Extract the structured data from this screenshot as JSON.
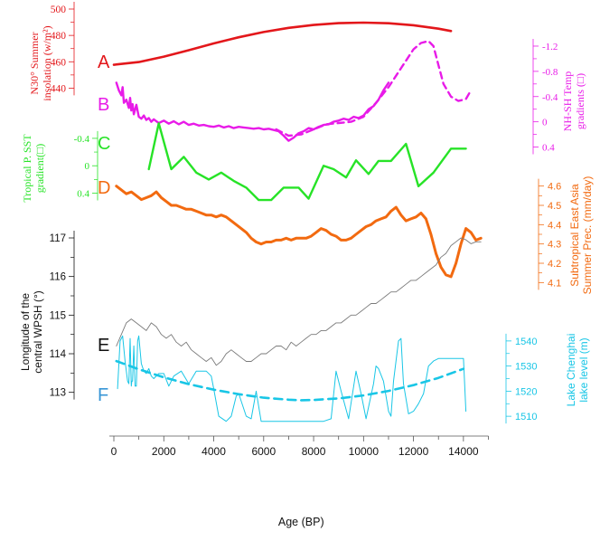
{
  "colors": {
    "A": "#e3171b",
    "B": "#e81be8",
    "C": "#27e327",
    "D": "#f26a10",
    "E": "#111111",
    "E_line": "#7a7a7a",
    "F": "#19c6e6",
    "F_letter": "#3896d6",
    "axis": "#555555"
  },
  "xaxis": {
    "label": "Age (BP)",
    "range": [
      0,
      15000
    ],
    "ticks": [
      0,
      2000,
      4000,
      6000,
      8000,
      10000,
      12000,
      14000
    ]
  },
  "chart_data": [
    {
      "type": "line",
      "letter": "A",
      "ylabel": [
        "N30° Summer",
        "insolation (w/m²)"
      ],
      "ylim": [
        430,
        500
      ],
      "yticks": [
        440,
        460,
        480,
        500
      ],
      "series": [
        {
          "style": "solid",
          "x": [
            0,
            1000,
            2000,
            3000,
            4000,
            5000,
            6000,
            7000,
            8000,
            9000,
            10000,
            11000,
            12000,
            13000,
            13500
          ],
          "y": [
            457.7,
            459.8,
            463.9,
            468.8,
            473.9,
            478.6,
            482.6,
            485.7,
            487.9,
            489.3,
            489.7,
            489.2,
            487.7,
            485.1,
            483.3
          ]
        }
      ]
    },
    {
      "type": "line",
      "letter": "B",
      "ylabel": [
        "NH-SH Temp",
        "gradients (□)"
      ],
      "ylim": [
        -1.3,
        0.55
      ],
      "yticks": [
        -1.2,
        -0.8,
        -0.4,
        0,
        0.4
      ],
      "ytick_labels": [
        "-1.2",
        "-0.8",
        "-0.4",
        "0",
        "0.4"
      ],
      "series": [
        {
          "style": "solid",
          "x": [
            100,
            200,
            300,
            350,
            400,
            500,
            600,
            650,
            700,
            750,
            800,
            900,
            1000,
            1100,
            1200,
            1300,
            1400,
            1500,
            1600,
            1800,
            2000,
            2200,
            2400,
            2600,
            2800,
            3000,
            3200,
            3400,
            3600,
            3800,
            4000,
            4200,
            4400,
            4600,
            4800,
            5000,
            5200,
            5400,
            5600,
            5800,
            6000,
            6200,
            6400,
            6600,
            6800,
            7000,
            7200,
            7400,
            7600,
            7800,
            8000,
            8200,
            8400,
            8600,
            8800,
            9000,
            9200,
            9400,
            9600,
            9800,
            10000,
            10200,
            10400,
            10600,
            10800,
            11000
          ],
          "y": [
            -0.62,
            -0.5,
            -0.42,
            -0.55,
            -0.3,
            -0.35,
            -0.22,
            -0.38,
            -0.18,
            -0.28,
            -0.12,
            -0.27,
            -0.08,
            -0.05,
            -0.1,
            -0.03,
            -0.06,
            0.0,
            -0.04,
            0.02,
            -0.02,
            0.03,
            -0.01,
            0.04,
            0.0,
            0.05,
            0.03,
            0.06,
            0.05,
            0.07,
            0.08,
            0.06,
            0.09,
            0.07,
            0.1,
            0.08,
            0.09,
            0.1,
            0.11,
            0.1,
            0.12,
            0.11,
            0.13,
            0.15,
            0.22,
            0.3,
            0.25,
            0.18,
            0.15,
            0.1,
            0.12,
            0.08,
            0.05,
            0.04,
            0.0,
            -0.02,
            -0.05,
            -0.03,
            -0.08,
            -0.06,
            -0.1,
            -0.2,
            -0.25,
            -0.35,
            -0.5,
            -0.62
          ]
        },
        {
          "style": "dashed",
          "x": [
            6500,
            7000,
            7500,
            8000,
            8500,
            9000,
            9500,
            10000,
            10500,
            11000,
            11500,
            12000,
            12300,
            12600,
            12800,
            13000,
            13200,
            13500,
            13800,
            14100,
            14300
          ],
          "y": [
            0.12,
            0.22,
            0.2,
            0.12,
            0.04,
            0.02,
            0.0,
            -0.08,
            -0.3,
            -0.55,
            -0.85,
            -1.15,
            -1.25,
            -1.28,
            -1.2,
            -0.9,
            -0.6,
            -0.4,
            -0.33,
            -0.36,
            -0.5
          ]
        }
      ]
    },
    {
      "type": "line",
      "letter": "C",
      "ylabel": [
        "Tropical P. SST",
        "gradient(□)"
      ],
      "ylim": [
        -0.65,
        0.75
      ],
      "yticks": [
        -0.4,
        0,
        0.4
      ],
      "ytick_labels": [
        "-0.4",
        "0",
        "0.4"
      ],
      "series": [
        {
          "style": "solid",
          "x": [
            1400,
            1800,
            2300,
            2800,
            3300,
            3800,
            4300,
            4800,
            5300,
            5800,
            6300,
            6800,
            7400,
            7800,
            8400,
            8800,
            9300,
            9700,
            10200,
            10600,
            11100,
            11700,
            12200,
            12800,
            13500,
            14100
          ],
          "y": [
            0.05,
            -0.62,
            0.05,
            -0.13,
            0.1,
            0.2,
            0.1,
            0.22,
            0.32,
            0.5,
            0.5,
            0.32,
            0.32,
            0.48,
            0.0,
            0.05,
            0.17,
            -0.08,
            0.12,
            -0.07,
            -0.07,
            -0.32,
            0.3,
            0.1,
            -0.25,
            -0.25
          ]
        }
      ]
    },
    {
      "type": "line",
      "letter": "D",
      "ylabel": [
        "Subtropical East Asia",
        "Summer Prec. (mm/day)"
      ],
      "ylim": [
        4.05,
        4.65
      ],
      "yticks": [
        4.1,
        4.2,
        4.3,
        4.4,
        4.5,
        4.6
      ],
      "ytick_labels": [
        "4.1",
        "4.2",
        "4.3",
        "4.4",
        "4.5",
        "4.6"
      ],
      "series": [
        {
          "style": "solid",
          "x": [
            100,
            300,
            500,
            700,
            900,
            1100,
            1300,
            1500,
            1700,
            1900,
            2100,
            2300,
            2500,
            2700,
            2900,
            3100,
            3300,
            3500,
            3700,
            3900,
            4100,
            4300,
            4500,
            4700,
            4900,
            5100,
            5300,
            5500,
            5700,
            5900,
            6100,
            6300,
            6500,
            6700,
            6900,
            7100,
            7300,
            7500,
            7700,
            7900,
            8100,
            8300,
            8500,
            8700,
            8900,
            9100,
            9300,
            9500,
            9700,
            9900,
            10100,
            10300,
            10500,
            10700,
            10900,
            11100,
            11300,
            11500,
            11700,
            11900,
            12100,
            12300,
            12500,
            12700,
            12900,
            13100,
            13300,
            13500,
            13700,
            13900,
            14100,
            14300,
            14500,
            14700
          ],
          "y": [
            4.6,
            4.58,
            4.56,
            4.57,
            4.55,
            4.53,
            4.54,
            4.55,
            4.57,
            4.54,
            4.52,
            4.5,
            4.5,
            4.49,
            4.48,
            4.48,
            4.47,
            4.46,
            4.45,
            4.45,
            4.44,
            4.45,
            4.44,
            4.42,
            4.4,
            4.38,
            4.36,
            4.33,
            4.31,
            4.3,
            4.31,
            4.31,
            4.32,
            4.32,
            4.33,
            4.32,
            4.33,
            4.33,
            4.33,
            4.34,
            4.36,
            4.38,
            4.37,
            4.35,
            4.34,
            4.32,
            4.32,
            4.33,
            4.35,
            4.37,
            4.39,
            4.4,
            4.42,
            4.43,
            4.44,
            4.47,
            4.49,
            4.45,
            4.42,
            4.43,
            4.44,
            4.46,
            4.43,
            4.35,
            4.25,
            4.18,
            4.14,
            4.13,
            4.2,
            4.3,
            4.38,
            4.36,
            4.32,
            4.33
          ]
        }
      ]
    },
    {
      "type": "line",
      "letter": "E",
      "ylabel": [
        "Longitude of the",
        "central WPSH (°)"
      ],
      "ylim": [
        112.5,
        117
      ],
      "yticks": [
        113,
        114,
        115,
        116,
        117
      ],
      "ytick_labels": [
        "113",
        "114",
        "115",
        "116",
        "117"
      ],
      "series": [
        {
          "style": "solid",
          "x": [
            100,
            300,
            500,
            700,
            900,
            1100,
            1300,
            1500,
            1700,
            1900,
            2100,
            2300,
            2500,
            2700,
            2900,
            3100,
            3300,
            3500,
            3700,
            3900,
            4100,
            4300,
            4500,
            4700,
            4900,
            5100,
            5300,
            5500,
            5700,
            5900,
            6100,
            6300,
            6500,
            6700,
            6900,
            7100,
            7300,
            7500,
            7700,
            7900,
            8100,
            8300,
            8500,
            8700,
            8900,
            9100,
            9300,
            9500,
            9700,
            9900,
            10100,
            10300,
            10500,
            10700,
            10900,
            11100,
            11300,
            11500,
            11700,
            11900,
            12100,
            12300,
            12500,
            12700,
            12900,
            13100,
            13300,
            13500,
            13700,
            13900,
            14100,
            14300,
            14500,
            14700
          ],
          "y": [
            114.2,
            114.5,
            114.8,
            114.9,
            114.8,
            114.7,
            114.6,
            114.8,
            114.7,
            114.5,
            114.4,
            114.5,
            114.3,
            114.2,
            114.3,
            114.1,
            114.0,
            113.9,
            113.8,
            113.9,
            113.7,
            113.8,
            114.0,
            114.1,
            114.0,
            113.9,
            113.8,
            113.8,
            113.9,
            114.0,
            114.0,
            114.1,
            114.2,
            114.2,
            114.1,
            114.3,
            114.2,
            114.3,
            114.4,
            114.5,
            114.5,
            114.6,
            114.6,
            114.7,
            114.8,
            114.8,
            114.9,
            115.0,
            115.0,
            115.1,
            115.2,
            115.3,
            115.3,
            115.4,
            115.5,
            115.6,
            115.6,
            115.7,
            115.8,
            115.9,
            115.9,
            116.0,
            116.1,
            116.2,
            116.3,
            116.5,
            116.6,
            116.8,
            116.9,
            117.0,
            116.95,
            116.85,
            116.9,
            116.9
          ]
        }
      ]
    },
    {
      "type": "line",
      "letter": "F",
      "ylabel": [
        "Lake Chenghai",
        "lake level (m)"
      ],
      "ylim": [
        1505,
        1545
      ],
      "yticks": [
        1510,
        1520,
        1530,
        1540
      ],
      "ytick_labels": [
        "1510",
        "1520",
        "1530",
        "1540"
      ],
      "series": [
        {
          "style": "solid",
          "x": [
            150,
            250,
            350,
            450,
            550,
            600,
            650,
            700,
            720,
            750,
            800,
            850,
            900,
            950,
            1000,
            1100,
            1200,
            1300,
            1400,
            1500,
            1600,
            1800,
            2000,
            2200,
            2400,
            2700,
            3000,
            3300,
            3700,
            3900,
            4000,
            4200,
            4500,
            4700,
            4900,
            5000,
            5300,
            5500,
            5700,
            5900,
            6200,
            6600,
            7000,
            7500,
            8000,
            8400,
            8700,
            8900,
            9100,
            9400,
            9700,
            9900,
            10100,
            10400,
            10500,
            10600,
            10800,
            11000,
            11100,
            11200,
            11400,
            11500,
            11600,
            11800,
            12000,
            12200,
            12400,
            12600,
            12800,
            13000,
            13300,
            13600,
            14000,
            14100
          ],
          "y": [
            1521,
            1540,
            1542,
            1532,
            1524,
            1523,
            1541,
            1522,
            1524,
            1524,
            1538,
            1522,
            1522,
            1540,
            1542,
            1531,
            1528,
            1527,
            1529,
            1526,
            1525,
            1527,
            1527,
            1522,
            1526,
            1528,
            1523,
            1528,
            1528,
            1526,
            1521,
            1510,
            1508,
            1510,
            1518,
            1519,
            1510,
            1509,
            1520,
            1508,
            1508,
            1508,
            1508,
            1508,
            1508,
            1508,
            1509,
            1528,
            1520,
            1509,
            1528,
            1519,
            1509,
            1523,
            1530,
            1529,
            1524,
            1512,
            1510,
            1524,
            1540,
            1541,
            1523,
            1511,
            1512,
            1515,
            1519,
            1530,
            1532,
            1533,
            1533,
            1533,
            1533,
            1512
          ]
        },
        {
          "style": "dashed",
          "x": [
            100,
            1000,
            2000,
            3000,
            4000,
            5000,
            6000,
            7000,
            7500,
            8000,
            9000,
            10000,
            11000,
            12000,
            13000,
            14000
          ],
          "y": [
            1532.0,
            1528.7,
            1525.5,
            1522.8,
            1520.6,
            1518.8,
            1517.4,
            1516.6,
            1516.4,
            1516.5,
            1517.1,
            1518.3,
            1520.1,
            1522.4,
            1525.3,
            1528.9
          ]
        }
      ]
    }
  ]
}
